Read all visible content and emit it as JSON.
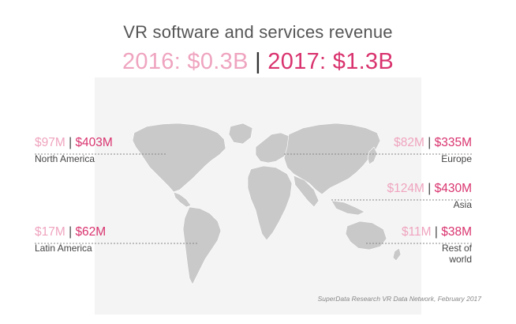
{
  "chart_data": {
    "type": "map",
    "title": "VR software and services revenue",
    "totals": [
      {
        "year": "2016",
        "label": "2016: $0.3B",
        "value": 0.3,
        "unit": "$B"
      },
      {
        "year": "2017",
        "label": "2017: $1.3B",
        "value": 1.3,
        "unit": "$B"
      }
    ],
    "years": [
      "2016",
      "2017"
    ],
    "regions": [
      {
        "name": "North America",
        "v2016_label": "$97M",
        "v2017_label": "$403M",
        "v2016": 97,
        "v2017": 403
      },
      {
        "name": "Latin America",
        "v2016_label": "$17M",
        "v2017_label": "$62M",
        "v2016": 17,
        "v2017": 62
      },
      {
        "name": "Europe",
        "v2016_label": "$82M",
        "v2017_label": "$335M",
        "v2016": 82,
        "v2017": 335
      },
      {
        "name": "Asia",
        "v2016_label": "$124M",
        "v2017_label": "$430M",
        "v2016": 124,
        "v2017": 430
      },
      {
        "name": "Rest of world",
        "v2016_label": "$11M",
        "v2017_label": "$38M",
        "v2016": 11,
        "v2017": 38
      }
    ],
    "source": "SuperData Research VR Data Network, February 2017"
  },
  "colors": {
    "year_2016": "#efa4bf",
    "year_2017": "#d9336e",
    "map_land": "#c9c9c9",
    "map_background": "#f4f4f4",
    "leader_line": "#888888"
  }
}
